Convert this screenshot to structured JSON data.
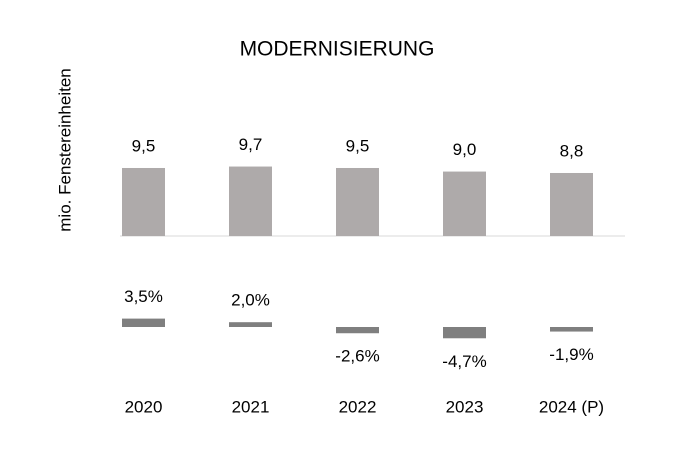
{
  "chart_data": {
    "type": "bar",
    "title": "MODERNISIERUNG",
    "y_label": "mio. Fenstereinheiten",
    "categories": [
      "2020",
      "2021",
      "2022",
      "2023",
      "2024 (P)"
    ],
    "series": [
      {
        "color": "#aeaaaa",
        "values": [
          9.5,
          9.7,
          9.5,
          9.0,
          8.8
        ],
        "value_labels": [
          "9,5",
          "9,7",
          "9,5",
          "9,0",
          "8,8"
        ]
      },
      {
        "color": "#7f7f7f",
        "values": [
          3.5,
          2.0,
          -2.6,
          -4.7,
          -1.9
        ],
        "value_labels": [
          "3,5%",
          "2,0%",
          "-2,6%",
          "-4,7%",
          "-1,9%"
        ]
      }
    ]
  }
}
